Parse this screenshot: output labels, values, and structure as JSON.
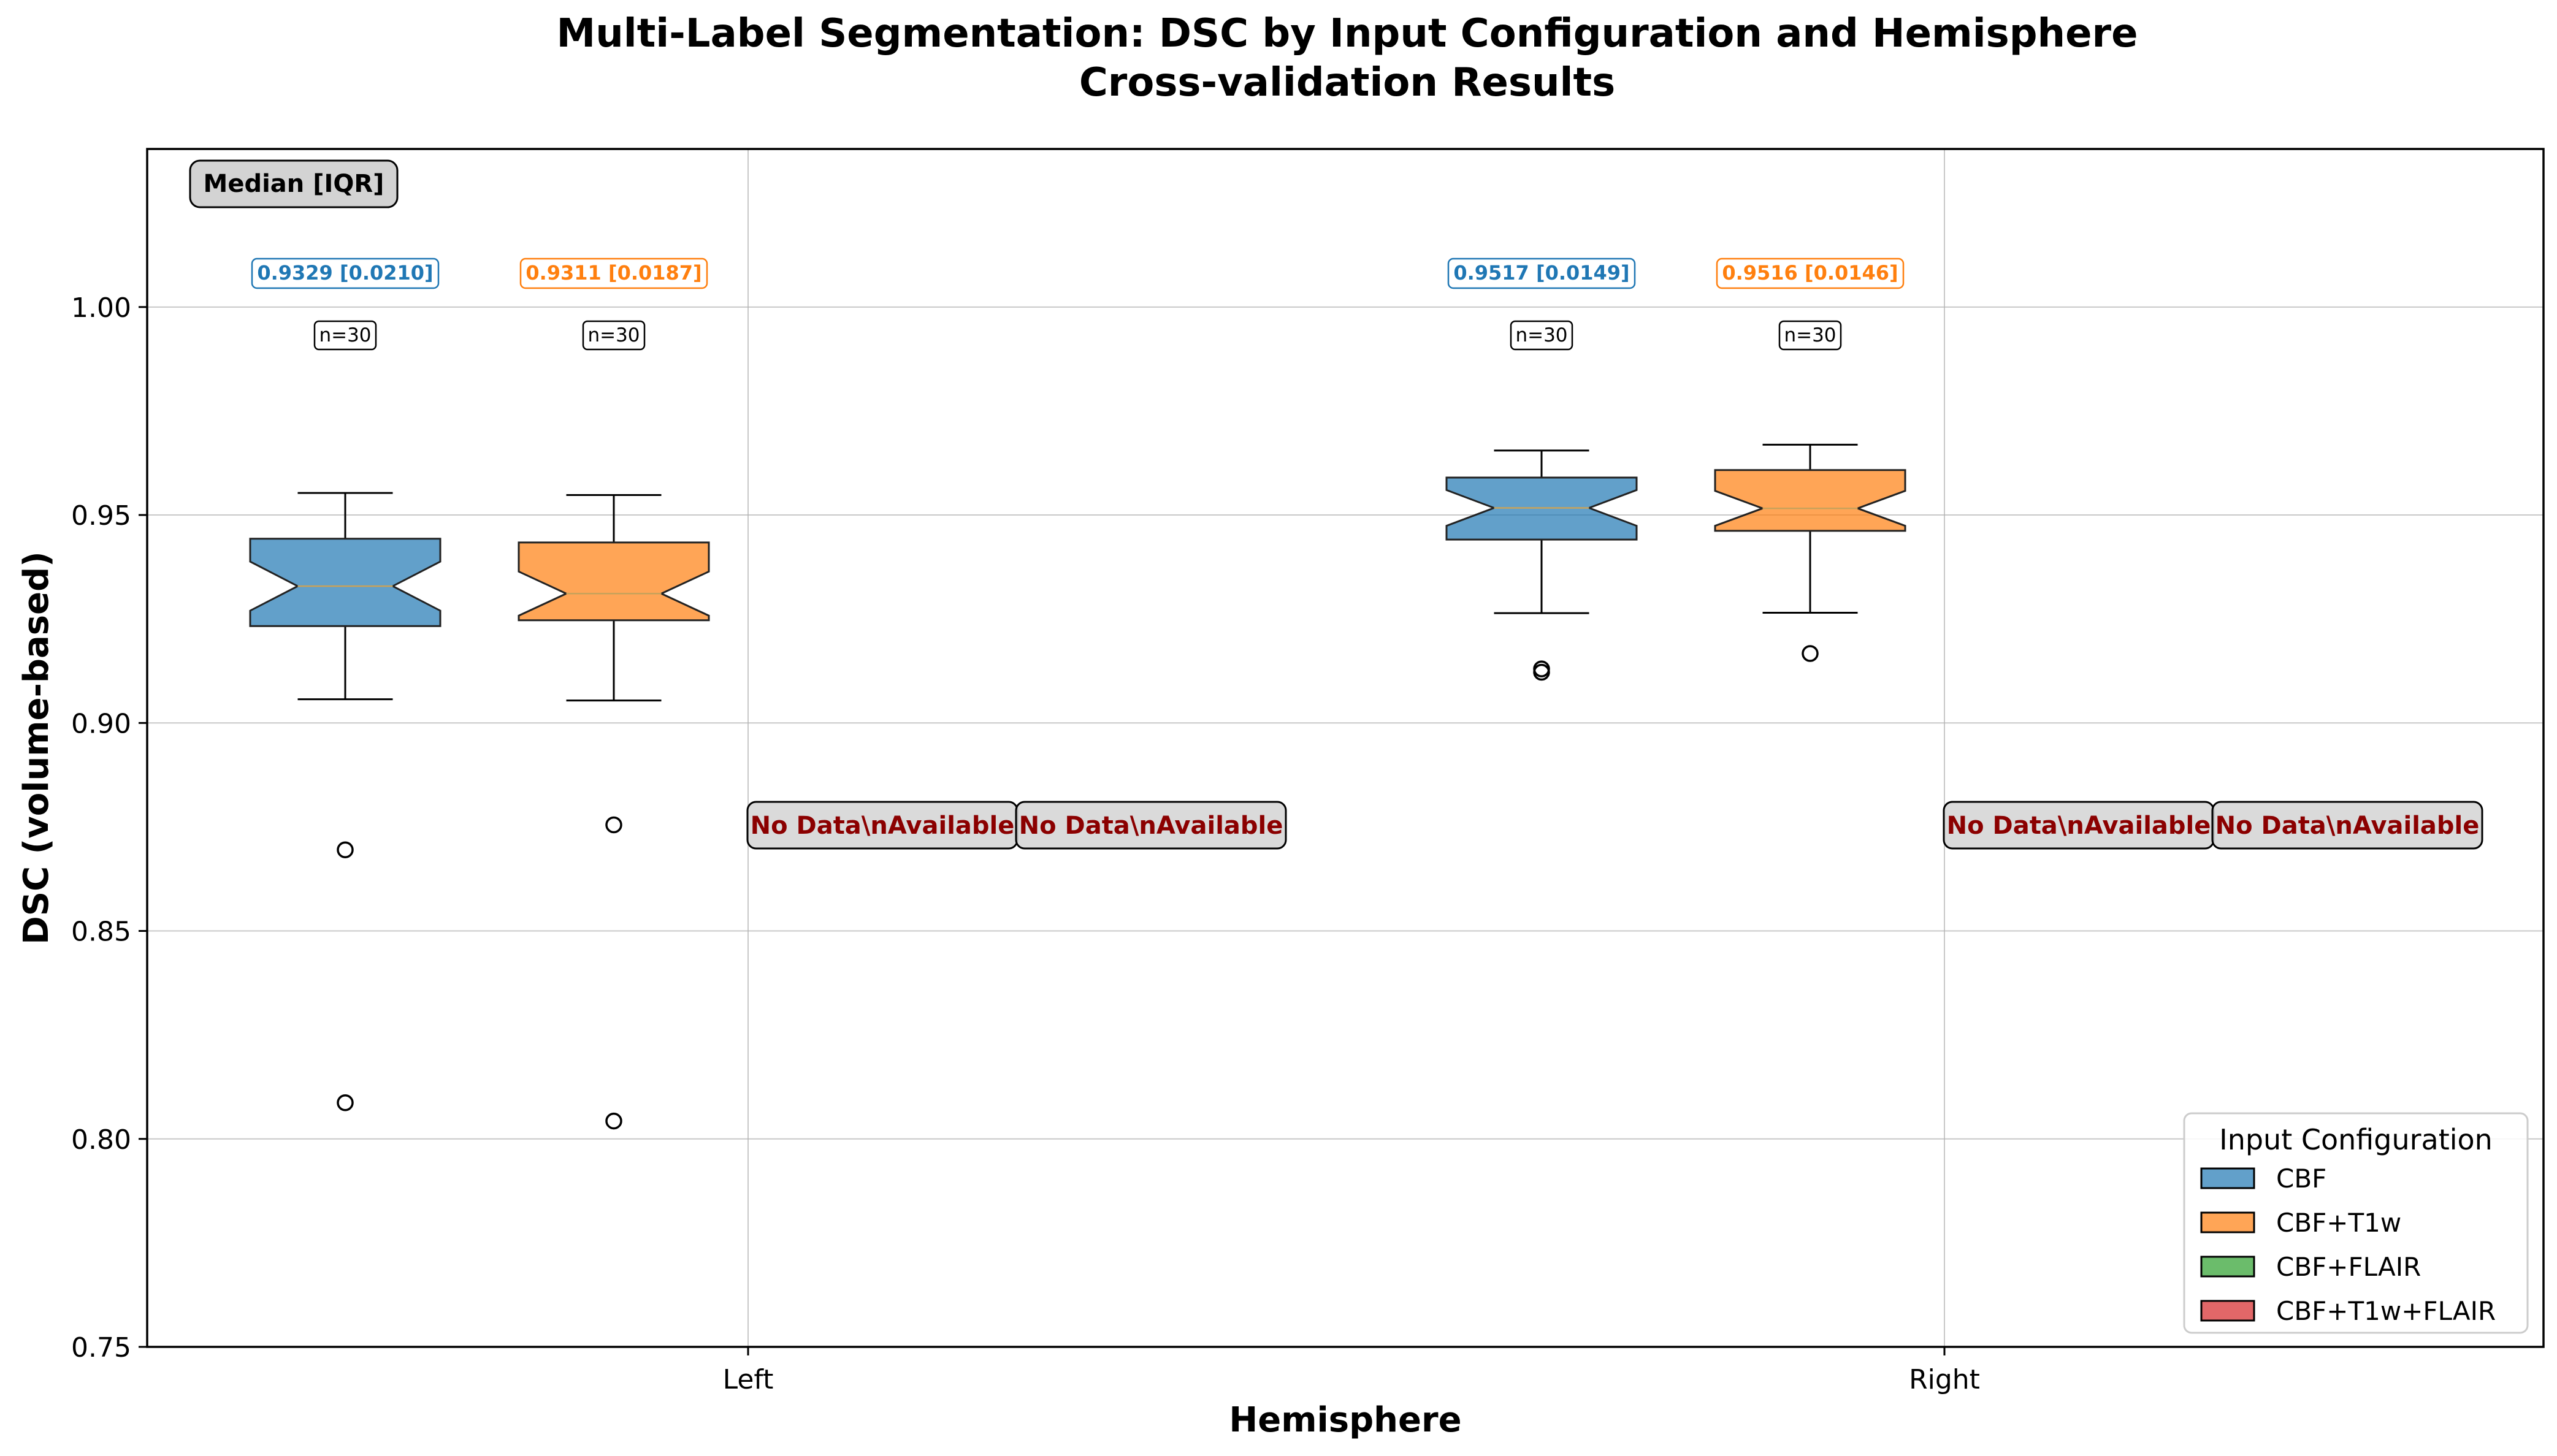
{
  "chart_data": {
    "type": "box",
    "title": "Multi-Label Segmentation: DSC by Input Configuration and Hemisphere",
    "subtitle": "Cross-validation Results",
    "xlabel": "Hemisphere",
    "ylabel": "DSC (volume-based)",
    "ylim": [
      0.75,
      1.038
    ],
    "yticks": [
      "0.75",
      "0.80",
      "0.85",
      "0.90",
      "0.95",
      "1.00"
    ],
    "ytick_values": [
      0.75,
      0.8,
      0.85,
      0.9,
      0.95,
      1.0
    ],
    "categories": [
      "Left",
      "Right"
    ],
    "grid": true,
    "summary_box_label": "Median [IQR]",
    "no_data_label": "No Data\\nAvailable",
    "legend": {
      "title": "Input Configuration",
      "placement": "lower-right",
      "entries": [
        {
          "name": "CBF",
          "color": "#1f77b4"
        },
        {
          "name": "CBF+T1w",
          "color": "#ff7f0e"
        },
        {
          "name": "CBF+FLAIR",
          "color": "#2ca02c"
        },
        {
          "name": "CBF+T1w+FLAIR",
          "color": "#d62728"
        }
      ]
    },
    "series": [
      {
        "name": "CBF",
        "color": "#1f77b4",
        "boxes": [
          {
            "category": "Left",
            "whisker_low": 0.9057,
            "q1": 0.9233,
            "median": 0.9329,
            "q3": 0.9443,
            "whisker_high": 0.9553,
            "notch_low": 0.927,
            "notch_high": 0.9388,
            "outliers": [
              0.8695,
              0.8087
            ],
            "label": "0.9329 [0.0210]",
            "n": "n=30"
          },
          {
            "category": "Right",
            "whisker_low": 0.9264,
            "q1": 0.9441,
            "median": 0.9517,
            "q3": 0.959,
            "whisker_high": 0.9655,
            "notch_low": 0.9474,
            "notch_high": 0.956,
            "outliers": [
              0.913,
              0.9122
            ],
            "label": "0.9517 [0.0149]",
            "n": "n=30"
          }
        ]
      },
      {
        "name": "CBF+T1w",
        "color": "#ff7f0e",
        "boxes": [
          {
            "category": "Left",
            "whisker_low": 0.9054,
            "q1": 0.9247,
            "median": 0.9311,
            "q3": 0.9434,
            "whisker_high": 0.9548,
            "notch_low": 0.9258,
            "notch_high": 0.9364,
            "outliers": [
              0.8755,
              0.8043
            ],
            "label": "0.9311 [0.0187]",
            "n": "n=30"
          },
          {
            "category": "Right",
            "whisker_low": 0.9265,
            "q1": 0.9462,
            "median": 0.9516,
            "q3": 0.9608,
            "whisker_high": 0.9669,
            "notch_low": 0.9474,
            "notch_high": 0.9558,
            "outliers": [
              0.9167
            ],
            "label": "0.9516 [0.0146]",
            "n": "n=30"
          }
        ]
      },
      {
        "name": "CBF+FLAIR",
        "color": "#2ca02c",
        "boxes": []
      },
      {
        "name": "CBF+T1w+FLAIR",
        "color": "#d62728",
        "boxes": []
      }
    ]
  }
}
